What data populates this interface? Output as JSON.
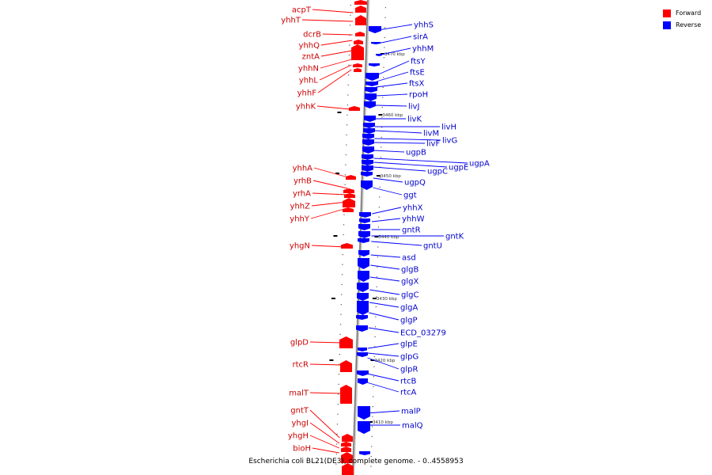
{
  "title": "Escherichia coli BL21(DE3), complete genome. - 0..4558953",
  "colors": {
    "forward": "#ff0000",
    "reverse": "#0000ff",
    "forward_label": "#cc0000",
    "reverse_label": "#0000cc"
  },
  "legend": [
    {
      "label": "Forward",
      "color": "#ff0000"
    },
    {
      "label": "Reverse",
      "color": "#0000ff"
    }
  ],
  "scale_ticks": [
    "3470 kbp",
    "3460 kbp",
    "3450 kbp",
    "3440 kbp",
    "3430 kbp",
    "3420 kbp",
    "3410 kbp"
  ],
  "forward_genes": [
    "acpT",
    "yhhT",
    "dcrB",
    "yhhQ",
    "zntA",
    "yhhN",
    "yhhL",
    "yhhF",
    "yhhK",
    "yhhA",
    "yrhB",
    "yrhA",
    "yhhZ",
    "yhhY",
    "yhgN",
    "glpD",
    "rtcR",
    "malT",
    "gntT",
    "yhgI",
    "yhgH",
    "bioH"
  ],
  "reverse_genes": [
    "yhhS",
    "sirA",
    "yhhM",
    "ftsY",
    "ftsE",
    "ftsX",
    "rpoH",
    "livJ",
    "livK",
    "livH",
    "livM",
    "livG",
    "livF",
    "ugpB",
    "ugpA",
    "ugpE",
    "ugpC",
    "ugpQ",
    "ggt",
    "yhhX",
    "yhhW",
    "gntR",
    "gntK",
    "gntU",
    "asd",
    "glgB",
    "glgX",
    "glgC",
    "glgA",
    "glgP",
    "ECD_03279",
    "glpE",
    "glpG",
    "glpR",
    "rtcB",
    "rtcA",
    "malP",
    "malQ"
  ]
}
